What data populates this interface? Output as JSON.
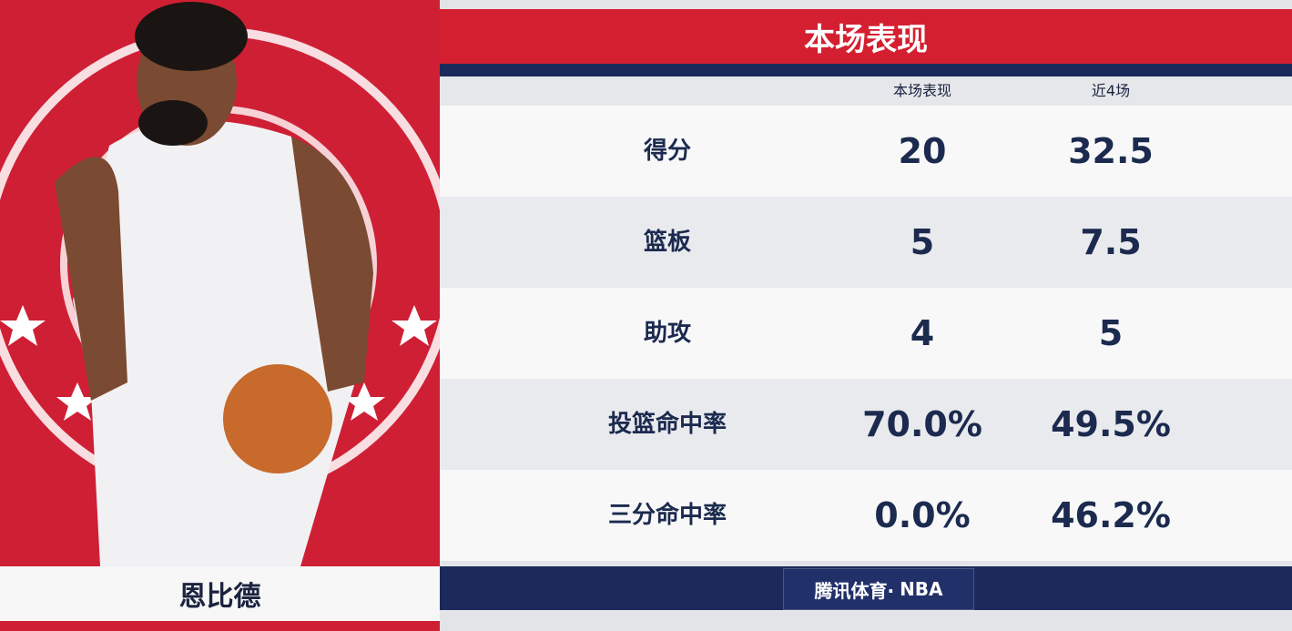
{
  "header": {
    "title": "本场表现"
  },
  "player": {
    "name": "恩比德"
  },
  "table": {
    "columns": [
      "本场表现",
      "近4场"
    ],
    "rows": [
      [
        "得分",
        "20",
        "32.5"
      ],
      [
        "篮板",
        "5",
        "7.5"
      ],
      [
        "助攻",
        "4",
        "5"
      ],
      [
        "投篮命中率",
        "70.0%",
        "49.5%"
      ],
      [
        "三分命中率",
        "0.0%",
        "46.2%"
      ]
    ]
  },
  "footer": {
    "brand": "腾讯体育·",
    "league": "NBA"
  }
}
